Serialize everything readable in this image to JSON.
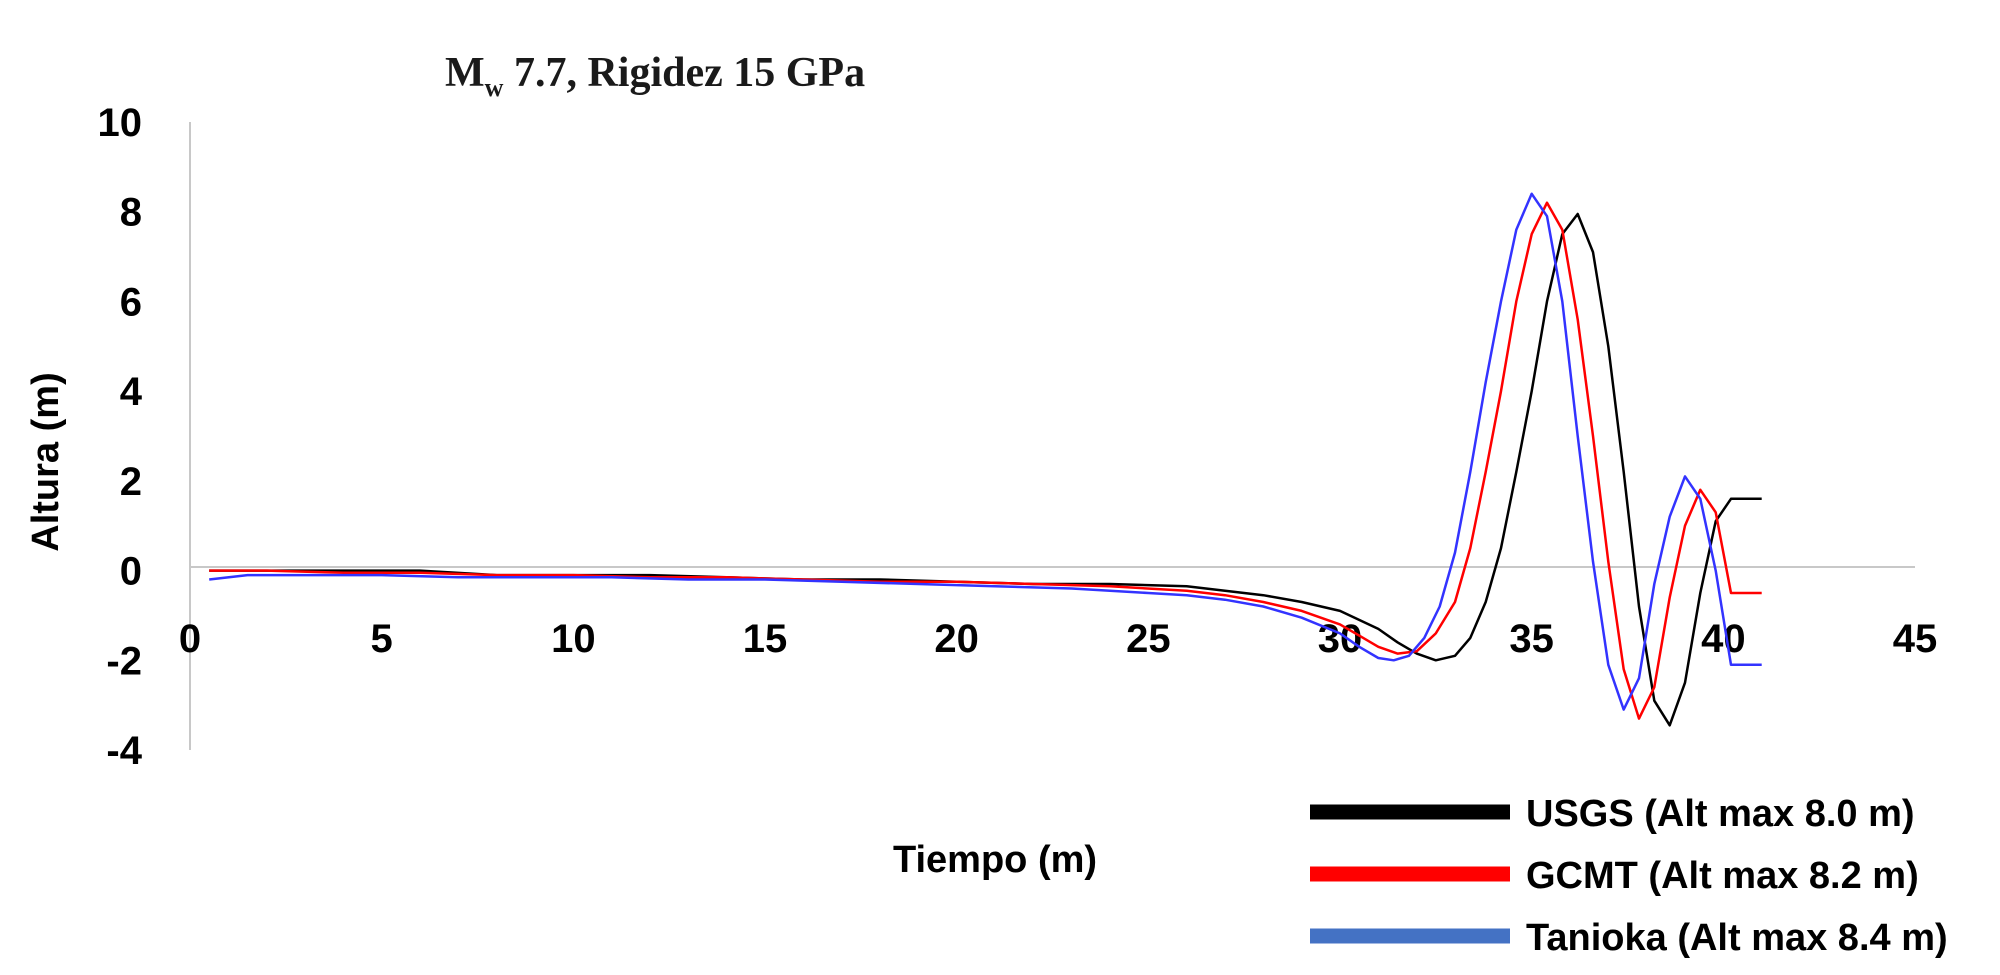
{
  "chart_data": {
    "type": "line",
    "title": {
      "main": "M",
      "subscript": "w",
      "rest": " 7.7, Rigidez  15 GPa"
    },
    "xlabel": "Tiempo (m)",
    "ylabel": "Altura (m)",
    "xlim": [
      0,
      45
    ],
    "ylim": [
      -4,
      10
    ],
    "xticks": [
      "0",
      "5",
      "10",
      "15",
      "20",
      "25",
      "30",
      "35",
      "40",
      "45"
    ],
    "yticks": [
      "10",
      "8",
      "6",
      "4",
      "2",
      "0",
      "-2",
      "-4"
    ],
    "grid": false,
    "legend_position": "bottom-right",
    "series": [
      {
        "name": "USGS (Alt max 8.0 m)",
        "color": "#000000",
        "x": [
          0.5,
          2,
          4,
          6,
          8,
          10,
          12,
          14,
          16,
          18,
          20,
          22,
          24,
          26,
          27,
          28,
          29,
          30,
          31,
          31.5,
          32,
          32.5,
          33,
          33.4,
          33.8,
          34.2,
          34.6,
          35,
          35.4,
          35.8,
          36.2,
          36.6,
          37,
          37.4,
          37.8,
          38.2,
          38.6,
          39,
          39.4,
          39.8,
          40.2,
          40.6,
          41
        ],
        "y": [
          0,
          0,
          0,
          0,
          -0.1,
          -0.1,
          -0.1,
          -0.15,
          -0.2,
          -0.2,
          -0.25,
          -0.3,
          -0.3,
          -0.35,
          -0.45,
          -0.55,
          -0.7,
          -0.9,
          -1.3,
          -1.6,
          -1.85,
          -2.0,
          -1.9,
          -1.5,
          -0.7,
          0.5,
          2.2,
          4.0,
          6.0,
          7.5,
          7.95,
          7.1,
          5.0,
          2.2,
          -0.8,
          -2.9,
          -3.45,
          -2.5,
          -0.5,
          1.1,
          1.6,
          1.6,
          1.6
        ]
      },
      {
        "name": "GCMT (Alt max 8.2 m)",
        "color": "#ff0000",
        "x": [
          0.5,
          2,
          4,
          6,
          8,
          10,
          12,
          14,
          16,
          18,
          20,
          22,
          24,
          26,
          27,
          28,
          29,
          30,
          30.5,
          31,
          31.5,
          32,
          32.5,
          33,
          33.4,
          33.8,
          34.2,
          34.6,
          35,
          35.4,
          35.8,
          36.2,
          36.6,
          37,
          37.4,
          37.8,
          38.2,
          38.6,
          39,
          39.4,
          39.8,
          40.2,
          40.6,
          41
        ],
        "y": [
          0,
          0,
          -0.05,
          -0.05,
          -0.1,
          -0.1,
          -0.15,
          -0.15,
          -0.2,
          -0.25,
          -0.25,
          -0.3,
          -0.35,
          -0.45,
          -0.55,
          -0.7,
          -0.9,
          -1.2,
          -1.45,
          -1.7,
          -1.85,
          -1.8,
          -1.4,
          -0.7,
          0.5,
          2.2,
          4.0,
          6.0,
          7.5,
          8.2,
          7.6,
          5.6,
          3.0,
          0.2,
          -2.2,
          -3.3,
          -2.6,
          -0.6,
          1.0,
          1.8,
          1.3,
          -0.5,
          -0.5,
          -0.5
        ]
      },
      {
        "name": "Tanioka (Alt max 8.4 m)",
        "color": "#3333ff",
        "legend_color": "#4472c4",
        "x": [
          0.5,
          1.5,
          3,
          5,
          7,
          9,
          11,
          13,
          15,
          17,
          19,
          21,
          23,
          25,
          26,
          27,
          28,
          29,
          30,
          30.5,
          31,
          31.4,
          31.8,
          32.2,
          32.6,
          33,
          33.4,
          33.8,
          34.2,
          34.6,
          35,
          35.4,
          35.8,
          36.2,
          36.6,
          37,
          37.4,
          37.8,
          38.2,
          38.6,
          39,
          39.4,
          39.8,
          40.2,
          40.6,
          41
        ],
        "y": [
          -0.2,
          -0.1,
          -0.1,
          -0.1,
          -0.15,
          -0.15,
          -0.15,
          -0.2,
          -0.2,
          -0.25,
          -0.3,
          -0.35,
          -0.4,
          -0.5,
          -0.55,
          -0.65,
          -0.8,
          -1.05,
          -1.4,
          -1.7,
          -1.95,
          -2.0,
          -1.9,
          -1.5,
          -0.8,
          0.4,
          2.2,
          4.2,
          6.0,
          7.6,
          8.4,
          7.9,
          6.0,
          3.0,
          0.2,
          -2.1,
          -3.1,
          -2.4,
          -0.3,
          1.2,
          2.1,
          1.6,
          0.0,
          -2.1,
          -2.1,
          -2.1
        ]
      }
    ]
  }
}
